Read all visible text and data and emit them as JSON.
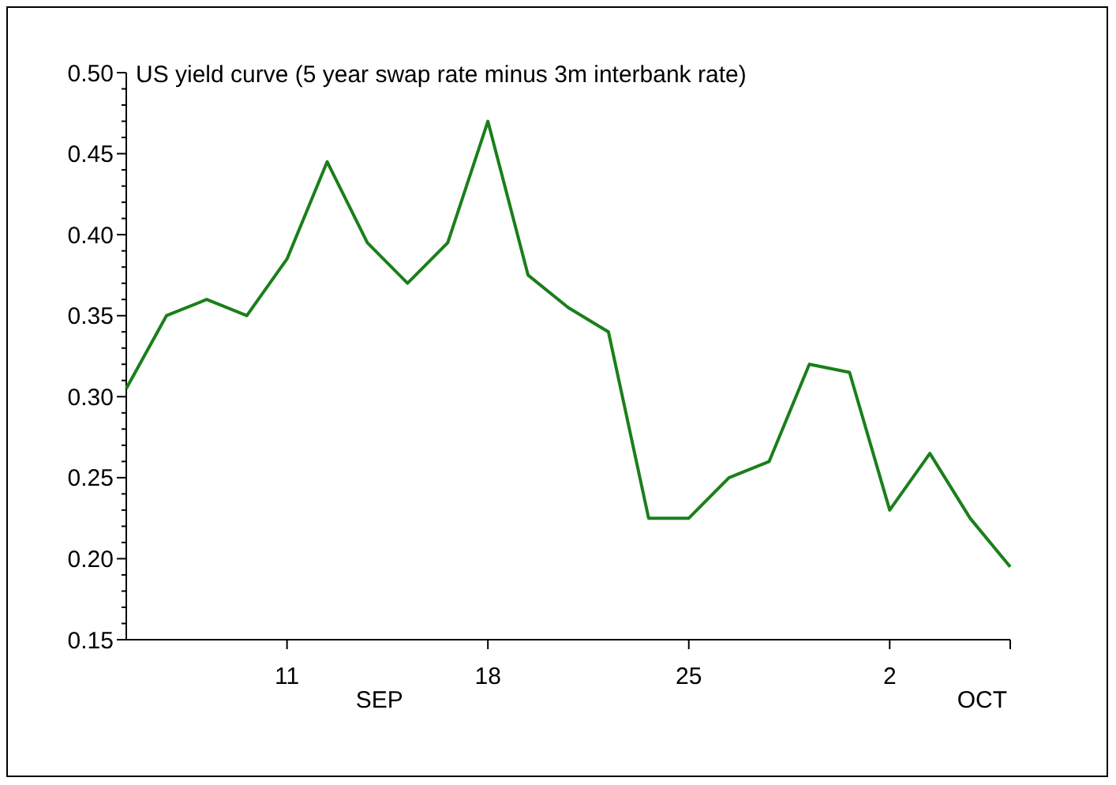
{
  "chart_data": {
    "type": "line",
    "title": "US yield curve (5 year swap rate minus 3m interbank rate)",
    "categories": [
      null,
      null,
      null,
      null,
      "11",
      null,
      null,
      null,
      null,
      "18",
      null,
      null,
      null,
      null,
      "25",
      null,
      null,
      null,
      null,
      "2",
      null,
      null,
      null
    ],
    "series": [
      {
        "color": "#1a7f1a",
        "values": [
          0.305,
          0.35,
          0.36,
          0.35,
          0.385,
          0.445,
          0.395,
          0.37,
          0.395,
          0.47,
          0.375,
          0.355,
          0.34,
          0.225,
          0.225,
          0.25,
          0.26,
          0.32,
          0.315,
          0.23,
          0.265,
          0.225,
          0.195
        ]
      }
    ],
    "ylim": [
      0.15,
      0.5
    ],
    "yticks": [
      "0.15",
      {
        "value": 0.16,
        "label": null
      },
      {
        "value": 0.17,
        "label": null
      },
      {
        "value": 0.18,
        "label": null
      },
      {
        "value": 0.19,
        "label": null
      },
      {
        "value": 0.2,
        "label": "0.20"
      },
      {
        "value": 0.21,
        "label": null
      },
      {
        "value": 0.22,
        "label": null
      },
      {
        "value": 0.23,
        "label": null
      },
      {
        "value": 0.24,
        "label": null
      },
      {
        "value": 0.25,
        "label": "0.25"
      },
      {
        "value": 0.26,
        "label": null
      },
      {
        "value": 0.27,
        "label": null
      },
      {
        "value": 0.28,
        "label": null
      },
      {
        "value": 0.29,
        "label": null
      },
      {
        "value": 0.3,
        "label": "0.30"
      },
      {
        "value": 0.31,
        "label": null
      },
      {
        "value": 0.32,
        "label": null
      },
      {
        "value": 0.33,
        "label": null
      },
      {
        "value": 0.34,
        "label": null
      },
      {
        "value": 0.35,
        "label": "0.35"
      },
      {
        "value": 0.36,
        "label": null
      },
      {
        "value": 0.37,
        "label": null
      },
      {
        "value": 0.38,
        "label": null
      },
      {
        "value": 0.39,
        "label": null
      },
      {
        "value": 0.4,
        "label": "0.40"
      },
      {
        "value": 0.41,
        "label": null
      },
      {
        "value": 0.42,
        "label": null
      },
      {
        "value": 0.43,
        "label": null
      },
      {
        "value": 0.44,
        "label": null
      },
      {
        "value": 0.45,
        "label": "0.45"
      },
      {
        "value": 0.46,
        "label": null
      },
      {
        "value": 0.47,
        "label": null
      },
      {
        "value": 0.48,
        "label": null
      },
      {
        "value": 0.49,
        "label": null
      },
      {
        "value": 0.5,
        "label": "0.50"
      }
    ],
    "annotations": [
      "SEP",
      "OCT"
    ],
    "marker": "none",
    "line_style": "solid"
  }
}
